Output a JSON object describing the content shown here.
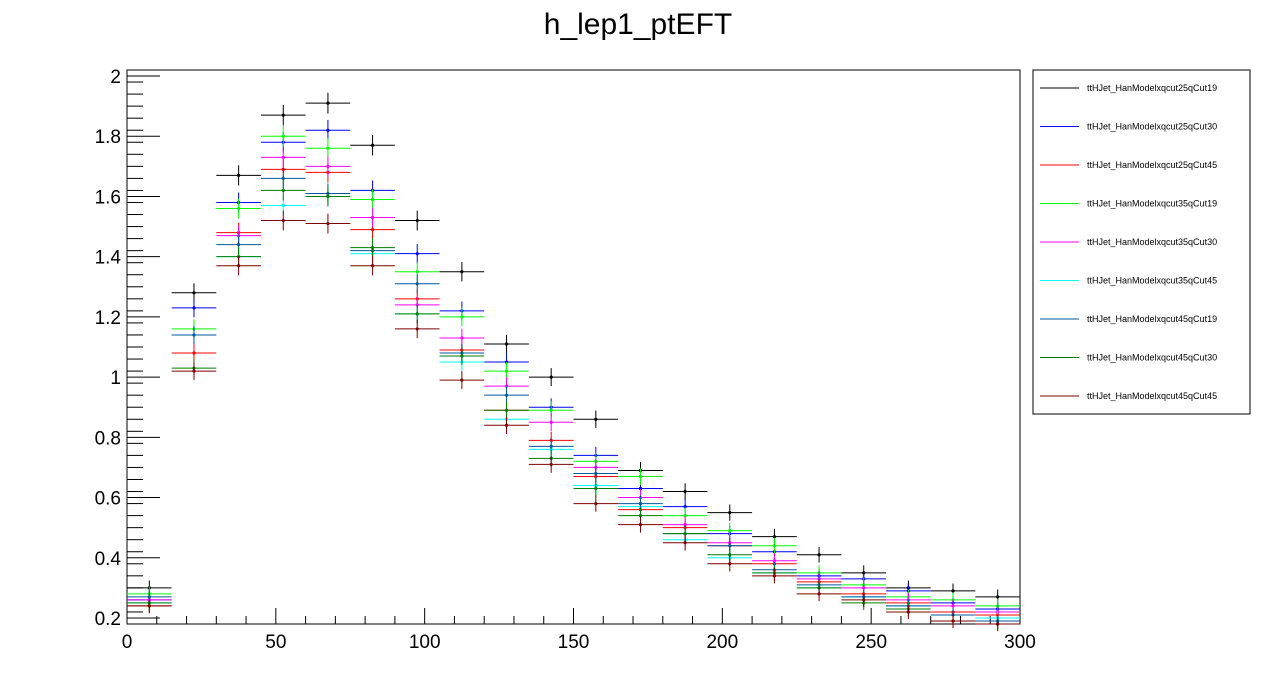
{
  "chart_data": {
    "type": "line",
    "title": "h_lep1_ptEFT",
    "xlabel": "",
    "ylabel": "",
    "xlim": [
      0,
      300
    ],
    "ylim": [
      0.18,
      2.02
    ],
    "x_tick_labels": [
      "0",
      "50",
      "100",
      "150",
      "200",
      "250",
      "300"
    ],
    "y_tick_labels": [
      "0.2",
      "0.4",
      "0.6",
      "0.8",
      "1",
      "1.2",
      "1.4",
      "1.6",
      "1.8",
      "2"
    ],
    "grid": false,
    "legend_position": "right",
    "bin_width": 15,
    "x": [
      7.5,
      22.5,
      37.5,
      52.5,
      67.5,
      82.5,
      97.5,
      112.5,
      127.5,
      142.5,
      157.5,
      172.5,
      187.5,
      202.5,
      217.5,
      232.5,
      247.5,
      262.5,
      277.5,
      292.5
    ],
    "series": [
      {
        "name": "ttHJet_HanModelxqcut25qCut19",
        "color": "#000000",
        "values": [
          0.3,
          1.28,
          1.67,
          1.87,
          1.91,
          1.77,
          1.52,
          1.35,
          1.11,
          1.0,
          0.86,
          0.69,
          0.62,
          0.55,
          0.47,
          0.41,
          0.35,
          0.3,
          0.29,
          0.27
        ]
      },
      {
        "name": "ttHJet_HanModelxqcut25qCut30",
        "color": "#0000ff",
        "values": [
          0.26,
          1.23,
          1.58,
          1.78,
          1.82,
          1.62,
          1.41,
          1.22,
          1.05,
          0.9,
          0.74,
          0.63,
          0.57,
          0.48,
          0.42,
          0.34,
          0.33,
          0.29,
          0.25,
          0.23
        ]
      },
      {
        "name": "ttHJet_HanModelxqcut25qCut45",
        "color": "#ff0000",
        "values": [
          0.24,
          1.08,
          1.48,
          1.69,
          1.68,
          1.49,
          1.26,
          1.09,
          0.89,
          0.79,
          0.67,
          0.56,
          0.5,
          0.44,
          0.38,
          0.32,
          0.28,
          0.25,
          0.22,
          0.21
        ]
      },
      {
        "name": "ttHJet_HanModelxqcut35qCut19",
        "color": "#00ff00",
        "values": [
          0.28,
          1.16,
          1.56,
          1.8,
          1.76,
          1.59,
          1.35,
          1.2,
          1.02,
          0.89,
          0.72,
          0.67,
          0.54,
          0.49,
          0.44,
          0.35,
          0.31,
          0.27,
          0.26,
          0.24
        ]
      },
      {
        "name": "ttHJet_HanModelxqcut35qCut30",
        "color": "#ff00ff",
        "values": [
          0.26,
          1.14,
          1.47,
          1.73,
          1.7,
          1.53,
          1.24,
          1.13,
          0.97,
          0.85,
          0.7,
          0.6,
          0.51,
          0.45,
          0.39,
          0.33,
          0.3,
          0.26,
          0.24,
          0.22
        ]
      },
      {
        "name": "ttHJet_HanModelxqcut35qCut45",
        "color": "#00ffff",
        "values": [
          0.25,
          1.14,
          1.4,
          1.57,
          1.6,
          1.41,
          1.21,
          1.05,
          0.86,
          0.76,
          0.64,
          0.57,
          0.46,
          0.4,
          0.35,
          0.3,
          0.27,
          0.24,
          0.21,
          0.2
        ]
      },
      {
        "name": "ttHJet_HanModelxqcut45qCut19",
        "color": "#00599f",
        "values": [
          0.27,
          1.14,
          1.44,
          1.66,
          1.61,
          1.42,
          1.31,
          1.08,
          0.94,
          0.77,
          0.68,
          0.58,
          0.48,
          0.44,
          0.36,
          0.31,
          0.27,
          0.24,
          0.21,
          0.19
        ]
      },
      {
        "name": "ttHJet_HanModelxqcut45qCut30",
        "color": "#007f00",
        "values": [
          0.25,
          1.03,
          1.4,
          1.62,
          1.6,
          1.43,
          1.21,
          1.07,
          0.89,
          0.73,
          0.63,
          0.54,
          0.48,
          0.41,
          0.35,
          0.3,
          0.25,
          0.23,
          0.19,
          0.18
        ]
      },
      {
        "name": "ttHJet_HanModelxqcut45qCut45",
        "color": "#7f0000",
        "values": [
          0.24,
          1.02,
          1.37,
          1.52,
          1.51,
          1.37,
          1.16,
          0.99,
          0.84,
          0.71,
          0.58,
          0.51,
          0.45,
          0.38,
          0.34,
          0.28,
          0.26,
          0.22,
          0.19,
          0.18
        ]
      }
    ]
  }
}
